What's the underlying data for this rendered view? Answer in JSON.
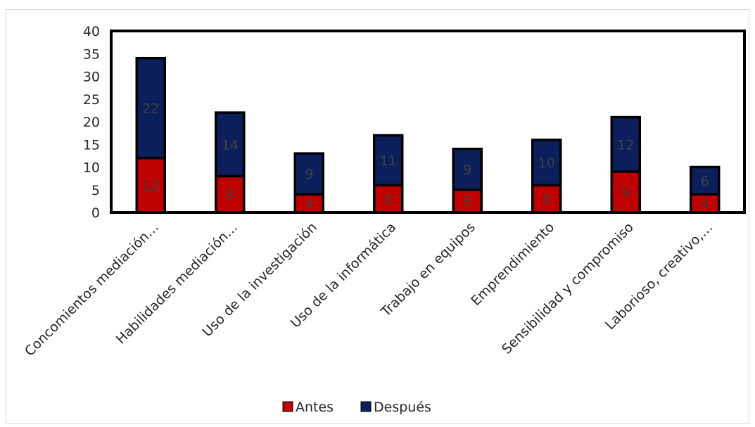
{
  "chart_data": {
    "type": "bar",
    "stacked": true,
    "categories": [
      "Concomientos mediación…",
      "Habilidades mediación…",
      "Uso de la investigación",
      "Uso de la informática",
      "Trabajo en equipos",
      "Emprendimiento",
      "Sensibilidad y compromiso",
      "Laborioso, creativo,…"
    ],
    "series": [
      {
        "name": "Antes",
        "values": [
          12,
          8,
          4,
          6,
          5,
          6,
          9,
          4
        ],
        "color": "#c00000"
      },
      {
        "name": "Después",
        "values": [
          22,
          14,
          9,
          11,
          9,
          10,
          12,
          6
        ],
        "color": "#0b1f5c"
      }
    ],
    "ylim": [
      0,
      40
    ],
    "yticks": [
      "0",
      "5",
      "10",
      "15",
      "20",
      "25",
      "30",
      "35",
      "40"
    ],
    "grid": false,
    "legend_position": "bottom",
    "data_labels": true,
    "title": "",
    "xlabel": "",
    "ylabel": ""
  }
}
